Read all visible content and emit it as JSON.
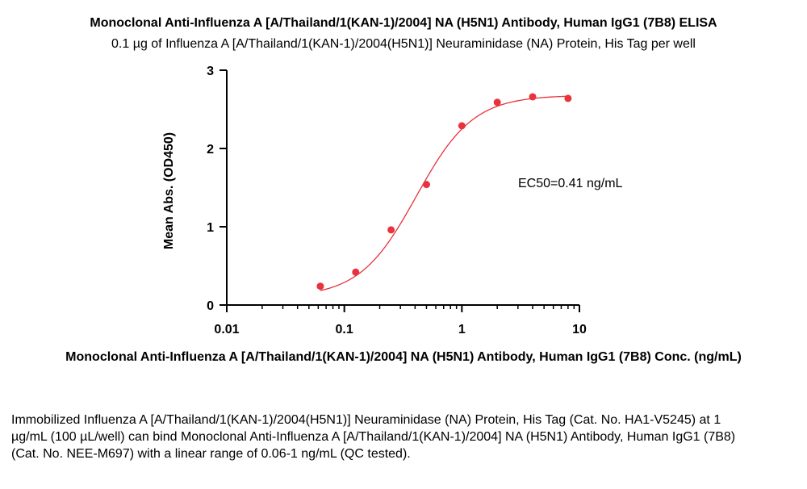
{
  "chart_data": {
    "type": "scatter",
    "title": "Monoclonal Anti-Influenza A [A/Thailand/1(KAN-1)/2004] NA (H5N1) Antibody, Human IgG1 (7B8) ELISA",
    "subtitle": "0.1 µg of Influenza A [A/Thailand/1(KAN-1)/2004(H5N1)] Neuraminidase (NA) Protein, His Tag per well",
    "xlabel": "Monoclonal Anti-Influenza A [A/Thailand/1(KAN-1)/2004] NA (H5N1) Antibody, Human IgG1 (7B8) Conc. (ng/mL)",
    "ylabel": "Mean Abs. (OD450)",
    "x_scale": "log",
    "xlim": [
      0.01,
      10
    ],
    "ylim": [
      0,
      3
    ],
    "x_ticks": [
      "0.01",
      "0.1",
      "1",
      "10"
    ],
    "y_ticks": [
      "0",
      "1",
      "2",
      "3"
    ],
    "annotation": "EC50=0.41 ng/mL",
    "points": [
      {
        "x": 0.0625,
        "y": 0.24
      },
      {
        "x": 0.125,
        "y": 0.42
      },
      {
        "x": 0.25,
        "y": 0.96
      },
      {
        "x": 0.5,
        "y": 1.54
      },
      {
        "x": 1,
        "y": 2.29
      },
      {
        "x": 2,
        "y": 2.59
      },
      {
        "x": 4,
        "y": 2.66
      },
      {
        "x": 8,
        "y": 2.64
      }
    ],
    "fit": {
      "bottom": 0.1,
      "top": 2.68,
      "ec50": 0.41,
      "hill": 1.8
    },
    "color": "#e8323c"
  },
  "caption": "Immobilized Influenza A [A/Thailand/1(KAN-1)/2004(H5N1)] Neuraminidase (NA) Protein, His Tag (Cat. No. HA1-V5245) at 1 µg/mL (100 µL/well) can bind Monoclonal Anti-Influenza A [A/Thailand/1(KAN-1)/2004] NA (H5N1) Antibody, Human IgG1 (7B8) (Cat. No. NEE-M697) with a linear range of 0.06-1 ng/mL (QC tested)."
}
